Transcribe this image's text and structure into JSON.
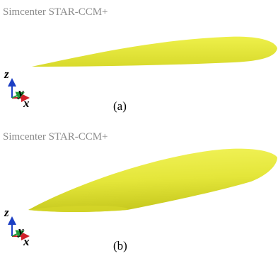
{
  "panels": [
    {
      "title": "Simcenter STAR-CCM+",
      "axis_labels": {
        "z": "z",
        "y": "y",
        "x": "x"
      },
      "caption": "(a)"
    },
    {
      "title": "Simcenter STAR-CCM+",
      "axis_labels": {
        "z": "z",
        "y": "y",
        "x": "x"
      },
      "caption": "(b)"
    }
  ]
}
